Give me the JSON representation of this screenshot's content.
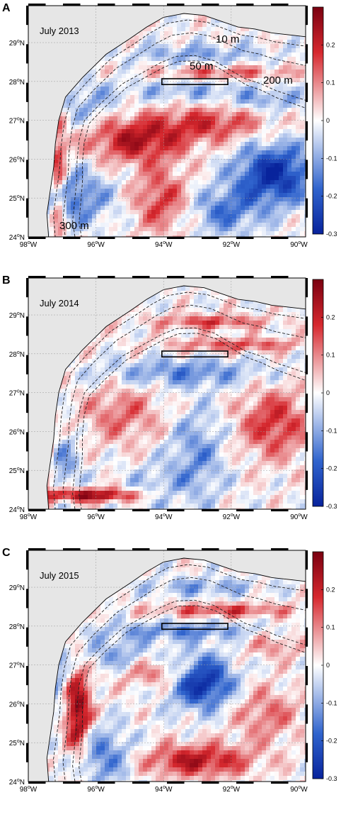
{
  "colorbar": {
    "ticks": [
      "0.2",
      "0.1",
      "0",
      "-0.1",
      "-0.2",
      "-0.3"
    ],
    "tick_values": [
      0.2,
      0.1,
      0,
      -0.1,
      -0.2,
      -0.3
    ],
    "range": [
      -0.3,
      0.3
    ],
    "colors": {
      "neg": "#08239c",
      "mid": "#ffffff",
      "pos": "#7a0010"
    }
  },
  "axes": {
    "lon_ticks": [
      "98",
      "96",
      "94",
      "92",
      "90"
    ],
    "lat_ticks": [
      "29",
      "28",
      "27",
      "26",
      "25",
      "24"
    ],
    "lon_suffix": "W",
    "lat_suffix": "N",
    "degree": "o"
  },
  "colors": {
    "land": "#e6e6e6",
    "frame": "#000000"
  },
  "panels": [
    {
      "letter": "A",
      "title": "July 2013",
      "contour_labels": [
        {
          "text": "10 m"
        },
        {
          "text": "50 m"
        },
        {
          "text": "200 m"
        },
        {
          "text": "300 m"
        }
      ]
    },
    {
      "letter": "B",
      "title": "July 2014",
      "contour_labels": []
    },
    {
      "letter": "C",
      "title": "July 2015",
      "contour_labels": []
    }
  ]
}
